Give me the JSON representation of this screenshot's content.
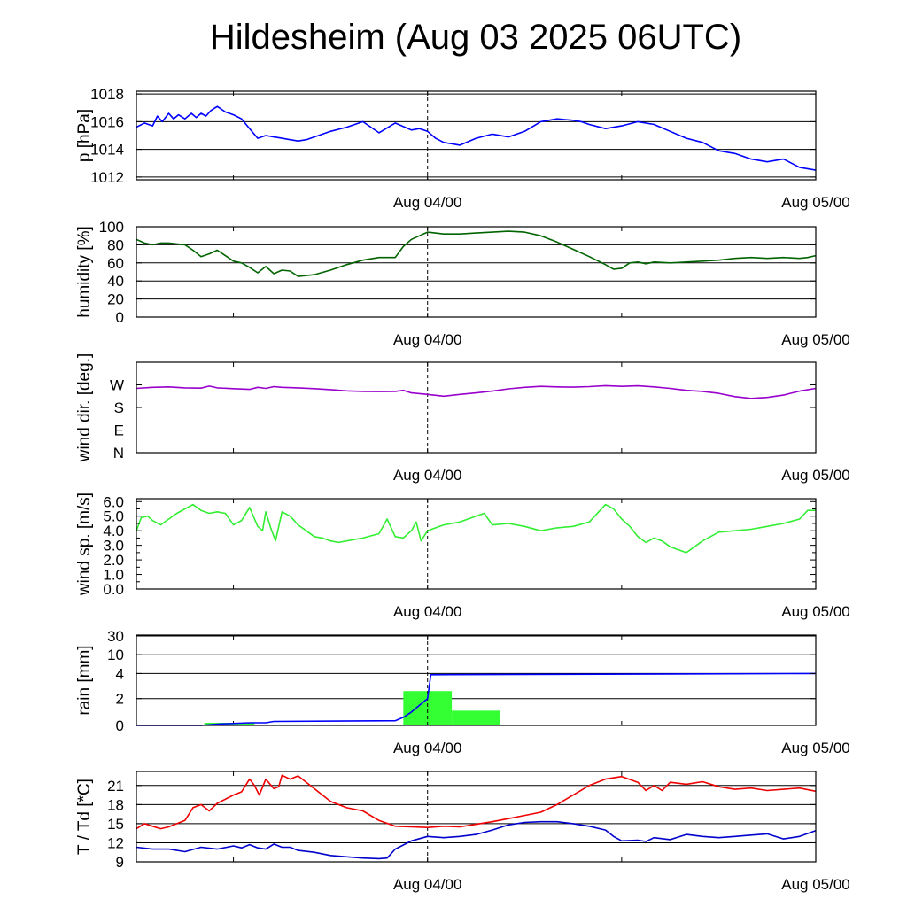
{
  "title": "Hildesheim (Aug 03 2025 06UTC)",
  "time_axis": {
    "labels": [
      "Aug 04/00",
      "Aug 05/00"
    ],
    "start_hour": 0,
    "end_hour": 42,
    "label_hours": [
      18,
      42
    ],
    "minor_hours": [
      6,
      18,
      30
    ],
    "dashed_hour": 18
  },
  "chart_data": [
    {
      "id": "pressure",
      "type": "line",
      "ylabel": "p [hPa]",
      "ylim": [
        1011.8,
        1018.2
      ],
      "ticks": [
        1012,
        1014,
        1016,
        1018
      ],
      "tick_labels": [
        "1012",
        "1014",
        "1016",
        "1018"
      ],
      "grid": [
        1012,
        1014,
        1016,
        1018
      ],
      "series": [
        {
          "color": "#0000ff",
          "x": [
            0,
            0.5,
            1,
            1.3,
            1.6,
            2,
            2.3,
            2.6,
            3,
            3.4,
            3.7,
            4,
            4.3,
            4.6,
            5,
            5.5,
            6,
            6.5,
            7,
            7.5,
            8,
            8.5,
            9,
            9.5,
            10,
            10.5,
            11,
            12,
            13,
            14,
            15,
            16,
            17,
            17.5,
            18,
            18.5,
            19,
            20,
            21,
            22,
            23,
            24,
            25,
            26,
            27,
            27.5,
            28,
            29,
            30,
            31,
            32,
            33,
            34,
            35,
            36,
            37,
            38,
            39,
            40,
            41,
            42
          ],
          "y": [
            1015.6,
            1015.9,
            1015.7,
            1016.4,
            1016.0,
            1016.6,
            1016.2,
            1016.5,
            1016.2,
            1016.6,
            1016.3,
            1016.6,
            1016.4,
            1016.8,
            1017.1,
            1016.7,
            1016.5,
            1016.2,
            1015.5,
            1014.8,
            1015.0,
            1014.9,
            1014.8,
            1014.7,
            1014.6,
            1014.7,
            1014.9,
            1015.3,
            1015.6,
            1016.0,
            1015.2,
            1015.9,
            1015.4,
            1015.5,
            1015.3,
            1014.8,
            1014.5,
            1014.3,
            1014.8,
            1015.1,
            1014.9,
            1015.3,
            1016.0,
            1016.2,
            1016.1,
            1016.0,
            1015.8,
            1015.5,
            1015.7,
            1016.0,
            1015.8,
            1015.3,
            1014.8,
            1014.5,
            1013.9,
            1013.7,
            1013.3,
            1013.1,
            1013.3,
            1012.7,
            1012.5
          ]
        }
      ]
    },
    {
      "id": "humidity",
      "type": "line",
      "ylabel": "humidity [%]",
      "ylim": [
        0,
        100
      ],
      "ticks": [
        0,
        20,
        40,
        60,
        80,
        100
      ],
      "tick_labels": [
        "0",
        "20",
        "40",
        "60",
        "80",
        "100"
      ],
      "grid": [
        20,
        40,
        60,
        80,
        100
      ],
      "series": [
        {
          "color": "#006400",
          "x": [
            0,
            0.5,
            1,
            1.5,
            2,
            3,
            3.5,
            4,
            4.5,
            5,
            5.5,
            6,
            6.5,
            7,
            7.5,
            8,
            8.5,
            9,
            9.5,
            10,
            10.5,
            11,
            12,
            13,
            14,
            15,
            16,
            16.5,
            17,
            17.5,
            18,
            19,
            20,
            21,
            22,
            23,
            24,
            25,
            26,
            27,
            28,
            29,
            29.5,
            30,
            30.5,
            31,
            31.5,
            32,
            33,
            34,
            35,
            36,
            37,
            38,
            39,
            40,
            41,
            41.5,
            42
          ],
          "y": [
            86,
            82,
            80,
            82,
            82,
            80,
            74,
            67,
            70,
            74,
            68,
            62,
            60,
            55,
            49,
            56,
            48,
            52,
            51,
            45,
            46,
            47,
            52,
            58,
            63,
            66,
            66,
            78,
            86,
            90,
            94,
            92,
            92,
            93,
            94,
            95,
            94,
            90,
            83,
            75,
            67,
            58,
            53,
            54,
            60,
            61,
            59,
            61,
            60,
            61,
            62,
            63,
            65,
            66,
            65,
            66,
            65,
            66,
            68
          ]
        }
      ]
    },
    {
      "id": "wind_direction",
      "type": "line",
      "ylabel": "wind dir. [deg.]",
      "ylim": [
        0,
        360
      ],
      "ticks": [
        0,
        90,
        180,
        270
      ],
      "tick_labels": [
        "N",
        "E",
        "S",
        "W"
      ],
      "grid": [],
      "series": [
        {
          "color": "#9900cc",
          "x": [
            0,
            1,
            2,
            3,
            4,
            4.5,
            5,
            6,
            7,
            7.5,
            8,
            8.5,
            9,
            10,
            11,
            12,
            13,
            14,
            15,
            16,
            16.5,
            17,
            18,
            19,
            20,
            21,
            22,
            23,
            24,
            25,
            26,
            27,
            28,
            29,
            30,
            31,
            32,
            33,
            34,
            35,
            36,
            37,
            38,
            39,
            40,
            41,
            42
          ],
          "y": [
            256,
            260,
            262,
            258,
            257,
            265,
            258,
            255,
            252,
            260,
            256,
            263,
            260,
            258,
            255,
            251,
            246,
            244,
            243,
            244,
            248,
            238,
            232,
            225,
            232,
            238,
            245,
            254,
            260,
            264,
            262,
            261,
            263,
            267,
            264,
            266,
            262,
            256,
            248,
            244,
            236,
            223,
            216,
            220,
            229,
            245,
            256
          ]
        }
      ]
    },
    {
      "id": "wind_speed",
      "type": "line",
      "ylabel": "wind sp. [m/s]",
      "ylim": [
        0,
        6.2
      ],
      "ticks": [
        0,
        0.5,
        1,
        1.5,
        2,
        2.5,
        3,
        3.5,
        4,
        4.5,
        5,
        5.5,
        6
      ],
      "tick_labels": [
        "0.0",
        "1.0",
        "2.0",
        "3.0",
        "4.0",
        "5.0",
        "6.0"
      ],
      "major_ticks": [
        0,
        1,
        2,
        3,
        4,
        5,
        6
      ],
      "grid": [],
      "series": [
        {
          "color": "#33ee33",
          "x": [
            0,
            0.3,
            0.7,
            1,
            1.5,
            2,
            2.5,
            3,
            3.5,
            4,
            4.5,
            5,
            5.5,
            6,
            6.5,
            7,
            7.5,
            7.8,
            8,
            8.3,
            8.6,
            9,
            9.5,
            10,
            10.5,
            11,
            11.5,
            12,
            12.5,
            13,
            14,
            15,
            15.5,
            16,
            16.5,
            17,
            17.3,
            17.6,
            18,
            18.5,
            19,
            20,
            21,
            21.5,
            22,
            23,
            24,
            25,
            26,
            27,
            28,
            29,
            29.5,
            30,
            30.5,
            31,
            31.5,
            32,
            32.5,
            33,
            33.5,
            34,
            35,
            36,
            37,
            38,
            39,
            40,
            41,
            41.5,
            42
          ],
          "y": [
            4.0,
            4.9,
            5.0,
            4.7,
            4.4,
            4.8,
            5.2,
            5.5,
            5.8,
            5.4,
            5.2,
            5.3,
            5.2,
            4.4,
            4.7,
            5.6,
            4.3,
            4.0,
            5.3,
            4.2,
            3.3,
            5.3,
            5.0,
            4.4,
            4.0,
            3.6,
            3.5,
            3.3,
            3.2,
            3.3,
            3.5,
            3.8,
            4.8,
            3.6,
            3.5,
            4.0,
            4.6,
            3.3,
            4.0,
            4.2,
            4.4,
            4.6,
            5.0,
            5.2,
            4.4,
            4.5,
            4.3,
            4.0,
            4.2,
            4.3,
            4.6,
            5.8,
            5.5,
            4.8,
            4.3,
            3.6,
            3.2,
            3.5,
            3.3,
            2.9,
            2.7,
            2.5,
            3.3,
            3.9,
            4.0,
            4.1,
            4.3,
            4.5,
            4.8,
            5.4,
            5.4
          ]
        }
      ]
    },
    {
      "id": "rain",
      "type": "line",
      "ylabel": "rain [mm]",
      "scale": "custom",
      "ylim": [
        0,
        30
      ],
      "ticks": [
        0,
        2,
        4,
        10,
        30
      ],
      "tick_labels": [
        "0",
        "2",
        "4",
        "10",
        "30"
      ],
      "grid": [
        2,
        4,
        10,
        30
      ],
      "bars": {
        "color": "#33ff33",
        "items": [
          {
            "x0": 4.2,
            "x1": 7.3,
            "value": 0.2
          },
          {
            "x0": 16.5,
            "x1": 19.5,
            "value": 2.6
          },
          {
            "x0": 19.5,
            "x1": 22.5,
            "value": 1.1
          }
        ]
      },
      "series": [
        {
          "color": "#0000ff",
          "x": [
            0,
            4,
            5,
            7,
            8,
            8.5,
            16,
            16.5,
            17,
            17.5,
            18,
            18.2,
            42
          ],
          "y": [
            0,
            0,
            0.1,
            0.2,
            0.2,
            0.3,
            0.35,
            0.6,
            1.0,
            1.5,
            2.0,
            3.9,
            4.0
          ]
        }
      ]
    },
    {
      "id": "temperature",
      "type": "line",
      "ylabel": "T / Td [*C]",
      "ylim": [
        9,
        23.2
      ],
      "ticks": [
        9,
        12,
        15,
        18,
        21
      ],
      "tick_labels": [
        "9",
        "12",
        "15",
        "18",
        "21"
      ],
      "grid": [
        12,
        15,
        18,
        21
      ],
      "series": [
        {
          "name": "T",
          "color": "#ee0000",
          "x": [
            0,
            0.5,
            1,
            1.5,
            2,
            3,
            3.5,
            4,
            4.5,
            5,
            6,
            6.5,
            7,
            7.3,
            7.6,
            8,
            8.5,
            8.8,
            9,
            9.5,
            10,
            10.5,
            11,
            12,
            13,
            14,
            15,
            16,
            17,
            18,
            19,
            20,
            21,
            22,
            23,
            24,
            25,
            26,
            27,
            28,
            29,
            30,
            31,
            31.5,
            32,
            32.5,
            33,
            34,
            35,
            36,
            37,
            38,
            39,
            40,
            41,
            42
          ],
          "y": [
            14.2,
            15.0,
            14.6,
            14.2,
            14.5,
            15.5,
            17.5,
            18.0,
            17.0,
            18.2,
            19.5,
            20.0,
            22.0,
            21.0,
            19.5,
            22.0,
            20.5,
            20.8,
            22.6,
            22.0,
            22.5,
            21.5,
            20.5,
            18.5,
            17.5,
            17.0,
            15.5,
            14.6,
            14.5,
            14.4,
            14.6,
            14.5,
            14.9,
            15.3,
            15.8,
            16.3,
            16.8,
            18.0,
            19.5,
            21.0,
            22.0,
            22.4,
            21.5,
            20.2,
            21.0,
            20.2,
            21.5,
            21.2,
            21.6,
            20.8,
            20.4,
            20.6,
            20.2,
            20.4,
            20.6,
            20.1
          ]
        },
        {
          "name": "Td",
          "color": "#0000cc",
          "x": [
            0,
            1,
            2,
            3,
            4,
            5,
            6,
            6.5,
            7,
            7.5,
            8,
            8.5,
            9,
            9.5,
            10,
            11,
            12,
            13,
            14,
            15,
            15.5,
            16,
            17,
            18,
            19,
            20,
            21,
            22,
            23,
            24,
            25,
            26,
            27,
            28,
            29,
            29.5,
            30,
            31,
            31.5,
            32,
            33,
            34,
            35,
            36,
            37,
            38,
            39,
            40,
            41,
            42
          ],
          "y": [
            11.3,
            11.0,
            11.0,
            10.6,
            11.3,
            11.0,
            11.5,
            11.2,
            11.7,
            11.2,
            11.0,
            11.8,
            11.3,
            11.3,
            10.8,
            10.5,
            10.0,
            9.8,
            9.6,
            9.5,
            9.6,
            11.0,
            12.3,
            13.0,
            12.8,
            13.0,
            13.3,
            14.0,
            14.8,
            15.2,
            15.3,
            15.3,
            15.0,
            14.6,
            14.0,
            13.0,
            12.3,
            12.4,
            12.2,
            12.8,
            12.5,
            13.3,
            13.0,
            12.8,
            13.0,
            13.2,
            13.4,
            12.6,
            13.0,
            13.9
          ]
        }
      ]
    }
  ]
}
